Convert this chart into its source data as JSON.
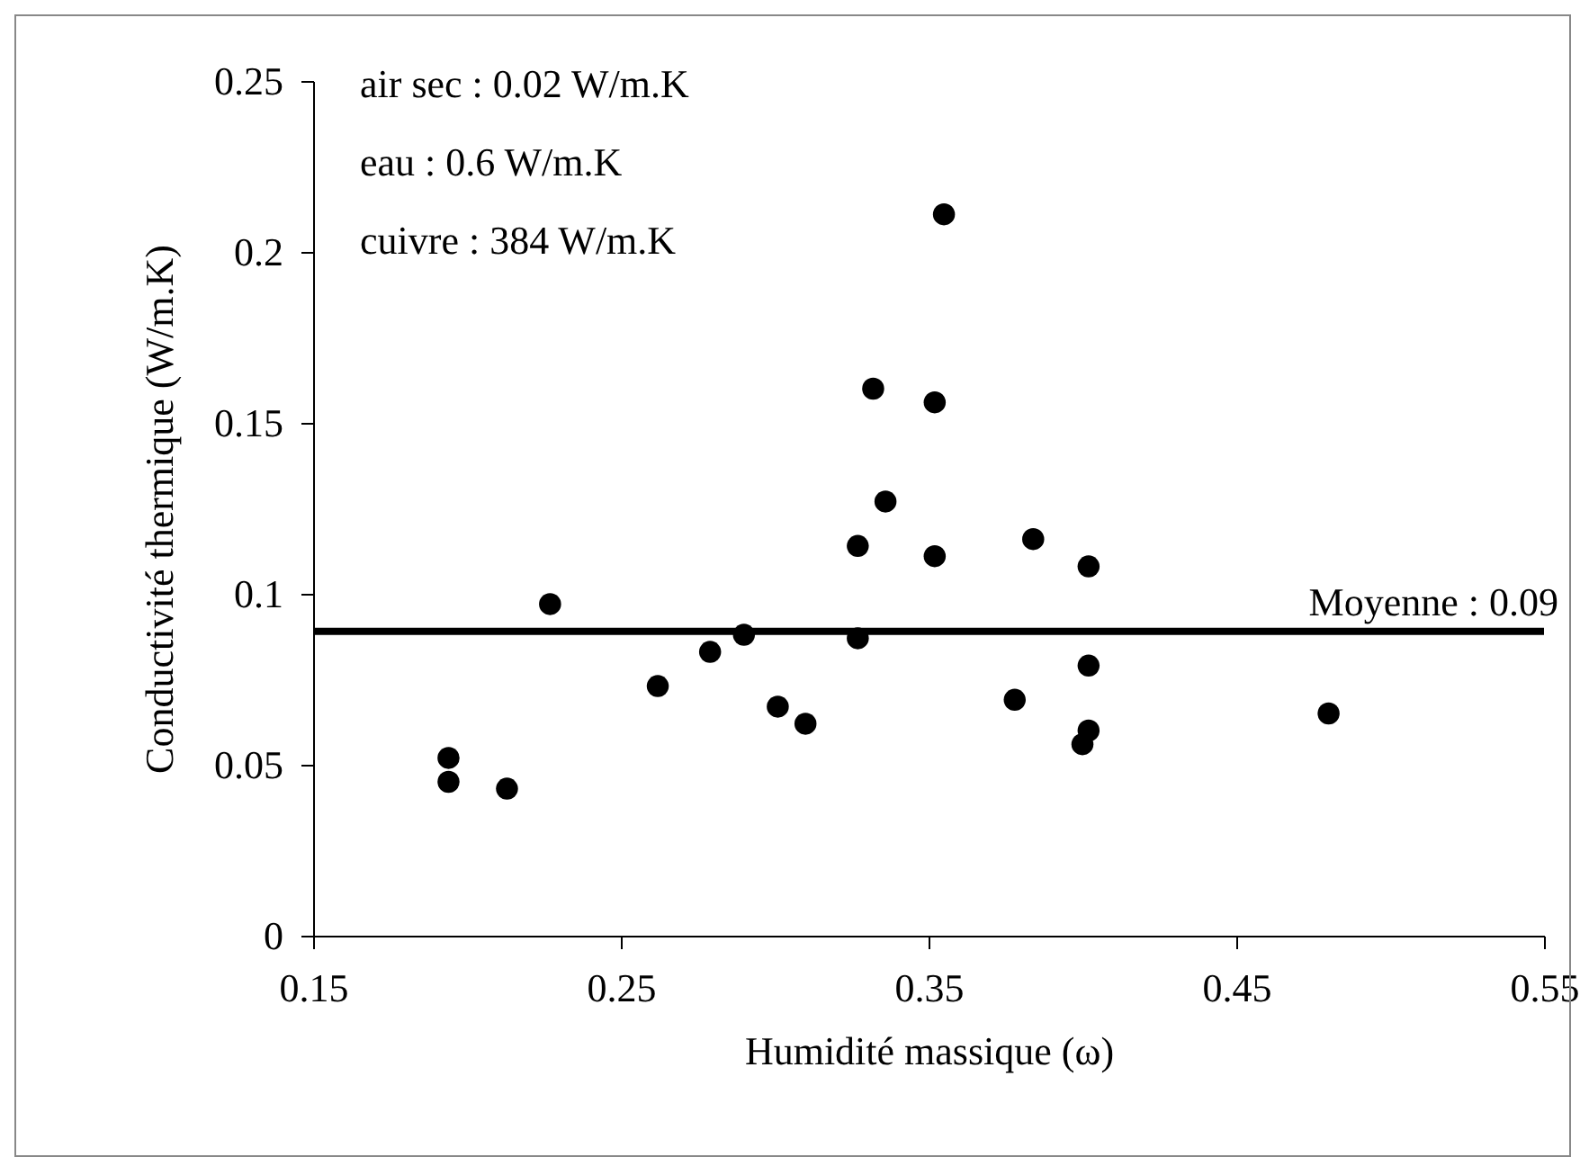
{
  "chart_data": {
    "type": "scatter",
    "xlabel": "Humidité massique (ω)",
    "ylabel": "Conductivité thermique (W/m.K)",
    "annotations": [
      "air sec : 0.02 W/m.K",
      "eau : 0.6 W/m.K",
      "cuivre : 384 W/m.K"
    ],
    "x": [
      0.194,
      0.194,
      0.213,
      0.227,
      0.262,
      0.279,
      0.29,
      0.301,
      0.31,
      0.327,
      0.327,
      0.332,
      0.336,
      0.352,
      0.352,
      0.355,
      0.378,
      0.384,
      0.402,
      0.402,
      0.402,
      0.4,
      0.48
    ],
    "series": [
      {
        "color": "#000000",
        "values": [
          0.052,
          0.045,
          0.043,
          0.097,
          0.073,
          0.083,
          0.088,
          0.067,
          0.062,
          0.087,
          0.114,
          0.16,
          0.127,
          0.111,
          0.156,
          0.211,
          0.069,
          0.116,
          0.108,
          0.079,
          0.06,
          0.056,
          0.065
        ]
      }
    ],
    "xlim": [
      0.15,
      0.55
    ],
    "xticks": [
      0.15,
      0.25,
      0.35,
      0.45,
      0.55
    ],
    "ylim": [
      0,
      0.25
    ],
    "yticks": [
      0,
      0.05,
      0.1,
      0.15,
      0.2,
      0.25
    ],
    "ref_lines": [
      {
        "axis": "y",
        "value": 0.089,
        "label": "Moyenne : 0.09",
        "color": "#000000"
      }
    ],
    "grid": false,
    "marker": "circle"
  }
}
